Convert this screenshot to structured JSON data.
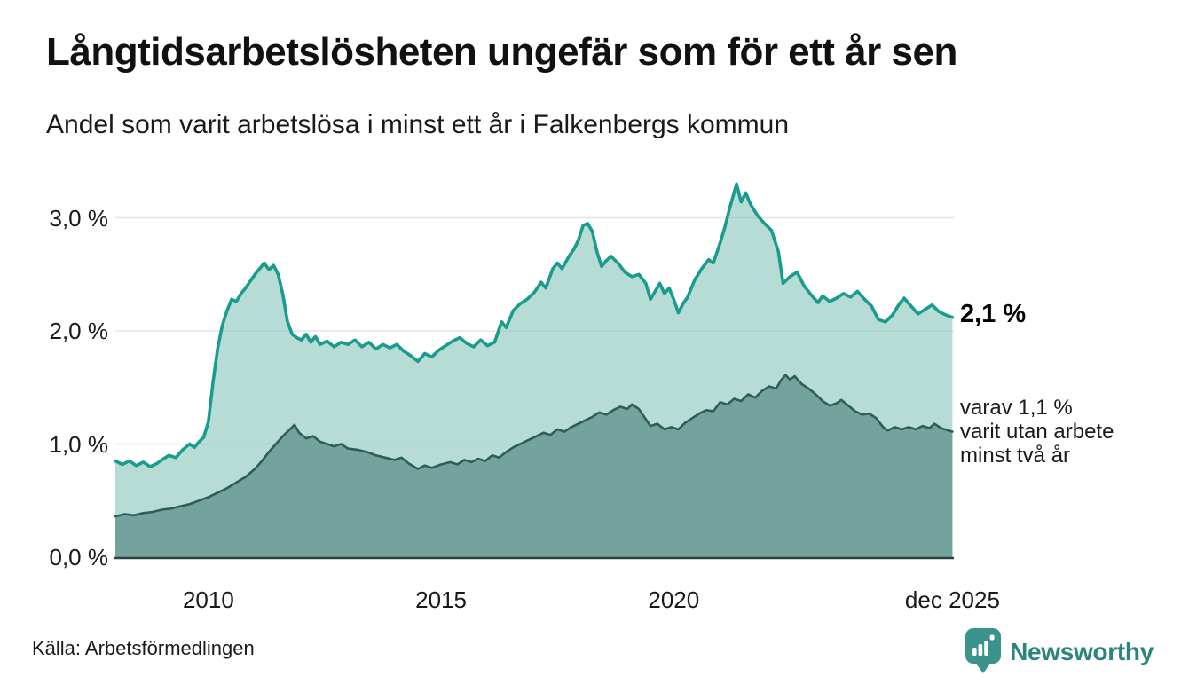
{
  "header": {
    "title": "Långtidsarbetslösheten ungefär som för ett år sen",
    "subtitle": "Andel som varit arbetslösa i minst ett år i Falkenbergs kommun"
  },
  "annotations": {
    "latest_value": "2,1 %",
    "secondary_line1": "varav 1,1 %",
    "secondary_line2": "varit utan arbete",
    "secondary_line3": "minst två år"
  },
  "footer": {
    "source": "Källa: Arbetsförmedlingen",
    "brand": "Newsworthy"
  },
  "colors": {
    "line_one_year": "#1a9c8d",
    "fill_one_year": "rgba(138,198,188,0.62)",
    "line_two_year": "#2d5f57",
    "fill_two_year": "#73a39c",
    "grid": "#e3e3e3",
    "axis": "#30403e",
    "logo_bubble": "#3b948b",
    "logo_text": "#2a857c",
    "text": "#1a1a1a"
  },
  "chart_data": {
    "type": "area",
    "title": "Långtidsarbetslösheten ungefär som för ett år sen",
    "subtitle": "Andel som varit arbetslösa i minst ett år i Falkenbergs kommun",
    "xlabel": "",
    "ylabel": "",
    "unit": "%",
    "x_range": [
      2008.0,
      2026.02
    ],
    "y_range": [
      0,
      3.3
    ],
    "grid": "horizontal",
    "legend": "annotated-inline",
    "x_ticks": [
      {
        "year": 2010,
        "label": "2010"
      },
      {
        "year": 2015,
        "label": "2015"
      },
      {
        "year": 2020,
        "label": "2020"
      },
      {
        "year": 2025.99,
        "label": "dec 2025"
      }
    ],
    "y_ticks": [
      {
        "value": 0,
        "label": "0,0 %"
      },
      {
        "value": 1,
        "label": "1,0 %"
      },
      {
        "value": 2,
        "label": "2,0 %"
      },
      {
        "value": 3,
        "label": "3,0 %"
      }
    ],
    "series": [
      {
        "name": "Andel som varit arbetslösa minst ett år",
        "end_value": 2.1,
        "end_label": "2,1 %",
        "points": [
          [
            2008.0,
            0.85
          ],
          [
            2008.15,
            0.82
          ],
          [
            2008.3,
            0.85
          ],
          [
            2008.45,
            0.81
          ],
          [
            2008.6,
            0.84
          ],
          [
            2008.75,
            0.8
          ],
          [
            2008.9,
            0.83
          ],
          [
            2009.0,
            0.86
          ],
          [
            2009.15,
            0.9
          ],
          [
            2009.3,
            0.88
          ],
          [
            2009.45,
            0.95
          ],
          [
            2009.6,
            1.0
          ],
          [
            2009.7,
            0.97
          ],
          [
            2009.8,
            1.02
          ],
          [
            2009.9,
            1.06
          ],
          [
            2010.0,
            1.2
          ],
          [
            2010.1,
            1.55
          ],
          [
            2010.2,
            1.85
          ],
          [
            2010.3,
            2.05
          ],
          [
            2010.4,
            2.18
          ],
          [
            2010.5,
            2.28
          ],
          [
            2010.6,
            2.26
          ],
          [
            2010.7,
            2.33
          ],
          [
            2010.8,
            2.38
          ],
          [
            2010.9,
            2.44
          ],
          [
            2011.0,
            2.5
          ],
          [
            2011.1,
            2.55
          ],
          [
            2011.2,
            2.6
          ],
          [
            2011.3,
            2.54
          ],
          [
            2011.4,
            2.58
          ],
          [
            2011.5,
            2.5
          ],
          [
            2011.6,
            2.32
          ],
          [
            2011.7,
            2.08
          ],
          [
            2011.8,
            1.97
          ],
          [
            2011.9,
            1.94
          ],
          [
            2012.0,
            1.92
          ],
          [
            2012.1,
            1.97
          ],
          [
            2012.2,
            1.9
          ],
          [
            2012.3,
            1.95
          ],
          [
            2012.4,
            1.88
          ],
          [
            2012.55,
            1.91
          ],
          [
            2012.7,
            1.86
          ],
          [
            2012.85,
            1.9
          ],
          [
            2013.0,
            1.88
          ],
          [
            2013.15,
            1.92
          ],
          [
            2013.3,
            1.86
          ],
          [
            2013.45,
            1.9
          ],
          [
            2013.6,
            1.84
          ],
          [
            2013.75,
            1.88
          ],
          [
            2013.9,
            1.85
          ],
          [
            2014.05,
            1.88
          ],
          [
            2014.2,
            1.82
          ],
          [
            2014.35,
            1.78
          ],
          [
            2014.5,
            1.73
          ],
          [
            2014.65,
            1.8
          ],
          [
            2014.8,
            1.77
          ],
          [
            2014.95,
            1.83
          ],
          [
            2015.1,
            1.87
          ],
          [
            2015.25,
            1.91
          ],
          [
            2015.4,
            1.94
          ],
          [
            2015.55,
            1.89
          ],
          [
            2015.7,
            1.86
          ],
          [
            2015.85,
            1.92
          ],
          [
            2016.0,
            1.87
          ],
          [
            2016.15,
            1.9
          ],
          [
            2016.3,
            2.08
          ],
          [
            2016.4,
            2.03
          ],
          [
            2016.55,
            2.18
          ],
          [
            2016.7,
            2.24
          ],
          [
            2016.85,
            2.28
          ],
          [
            2017.0,
            2.34
          ],
          [
            2017.15,
            2.43
          ],
          [
            2017.25,
            2.38
          ],
          [
            2017.4,
            2.55
          ],
          [
            2017.5,
            2.6
          ],
          [
            2017.6,
            2.55
          ],
          [
            2017.75,
            2.66
          ],
          [
            2017.85,
            2.72
          ],
          [
            2017.95,
            2.8
          ],
          [
            2018.05,
            2.93
          ],
          [
            2018.15,
            2.95
          ],
          [
            2018.25,
            2.88
          ],
          [
            2018.35,
            2.7
          ],
          [
            2018.45,
            2.57
          ],
          [
            2018.55,
            2.62
          ],
          [
            2018.65,
            2.66
          ],
          [
            2018.8,
            2.6
          ],
          [
            2018.95,
            2.52
          ],
          [
            2019.1,
            2.48
          ],
          [
            2019.25,
            2.5
          ],
          [
            2019.4,
            2.42
          ],
          [
            2019.5,
            2.28
          ],
          [
            2019.6,
            2.35
          ],
          [
            2019.7,
            2.42
          ],
          [
            2019.8,
            2.33
          ],
          [
            2019.9,
            2.38
          ],
          [
            2020.0,
            2.28
          ],
          [
            2020.1,
            2.16
          ],
          [
            2020.2,
            2.24
          ],
          [
            2020.3,
            2.3
          ],
          [
            2020.45,
            2.45
          ],
          [
            2020.6,
            2.55
          ],
          [
            2020.75,
            2.63
          ],
          [
            2020.85,
            2.6
          ],
          [
            2021.0,
            2.78
          ],
          [
            2021.1,
            2.92
          ],
          [
            2021.2,
            3.08
          ],
          [
            2021.35,
            3.3
          ],
          [
            2021.45,
            3.14
          ],
          [
            2021.55,
            3.22
          ],
          [
            2021.65,
            3.12
          ],
          [
            2021.8,
            3.02
          ],
          [
            2021.95,
            2.95
          ],
          [
            2022.1,
            2.89
          ],
          [
            2022.25,
            2.7
          ],
          [
            2022.35,
            2.42
          ],
          [
            2022.5,
            2.48
          ],
          [
            2022.65,
            2.52
          ],
          [
            2022.8,
            2.4
          ],
          [
            2022.95,
            2.32
          ],
          [
            2023.1,
            2.25
          ],
          [
            2023.2,
            2.31
          ],
          [
            2023.35,
            2.26
          ],
          [
            2023.5,
            2.29
          ],
          [
            2023.65,
            2.33
          ],
          [
            2023.8,
            2.3
          ],
          [
            2023.95,
            2.35
          ],
          [
            2024.1,
            2.28
          ],
          [
            2024.25,
            2.22
          ],
          [
            2024.4,
            2.1
          ],
          [
            2024.55,
            2.08
          ],
          [
            2024.7,
            2.14
          ],
          [
            2024.85,
            2.24
          ],
          [
            2024.95,
            2.29
          ],
          [
            2025.1,
            2.22
          ],
          [
            2025.25,
            2.15
          ],
          [
            2025.4,
            2.19
          ],
          [
            2025.55,
            2.23
          ],
          [
            2025.7,
            2.17
          ],
          [
            2025.85,
            2.14
          ],
          [
            2025.99,
            2.12
          ]
        ]
      },
      {
        "name": "Varav utan arbete minst två år",
        "end_value": 1.1,
        "end_label": "varav 1,1 % varit utan arbete minst två år",
        "points": [
          [
            2008.0,
            0.36
          ],
          [
            2008.2,
            0.38
          ],
          [
            2008.4,
            0.37
          ],
          [
            2008.6,
            0.39
          ],
          [
            2008.8,
            0.4
          ],
          [
            2009.0,
            0.42
          ],
          [
            2009.2,
            0.43
          ],
          [
            2009.4,
            0.45
          ],
          [
            2009.6,
            0.47
          ],
          [
            2009.8,
            0.5
          ],
          [
            2010.0,
            0.53
          ],
          [
            2010.2,
            0.57
          ],
          [
            2010.4,
            0.61
          ],
          [
            2010.6,
            0.66
          ],
          [
            2010.8,
            0.71
          ],
          [
            2011.0,
            0.78
          ],
          [
            2011.15,
            0.85
          ],
          [
            2011.3,
            0.93
          ],
          [
            2011.45,
            1.0
          ],
          [
            2011.6,
            1.07
          ],
          [
            2011.75,
            1.13
          ],
          [
            2011.85,
            1.17
          ],
          [
            2011.95,
            1.1
          ],
          [
            2012.1,
            1.05
          ],
          [
            2012.25,
            1.07
          ],
          [
            2012.4,
            1.02
          ],
          [
            2012.55,
            1.0
          ],
          [
            2012.7,
            0.98
          ],
          [
            2012.85,
            1.0
          ],
          [
            2013.0,
            0.96
          ],
          [
            2013.2,
            0.95
          ],
          [
            2013.4,
            0.93
          ],
          [
            2013.6,
            0.9
          ],
          [
            2013.8,
            0.88
          ],
          [
            2014.0,
            0.86
          ],
          [
            2014.15,
            0.88
          ],
          [
            2014.3,
            0.83
          ],
          [
            2014.5,
            0.78
          ],
          [
            2014.65,
            0.81
          ],
          [
            2014.8,
            0.79
          ],
          [
            2015.0,
            0.82
          ],
          [
            2015.2,
            0.84
          ],
          [
            2015.35,
            0.82
          ],
          [
            2015.5,
            0.86
          ],
          [
            2015.65,
            0.84
          ],
          [
            2015.8,
            0.87
          ],
          [
            2015.95,
            0.85
          ],
          [
            2016.1,
            0.9
          ],
          [
            2016.25,
            0.88
          ],
          [
            2016.4,
            0.93
          ],
          [
            2016.55,
            0.97
          ],
          [
            2016.7,
            1.0
          ],
          [
            2016.85,
            1.03
          ],
          [
            2017.0,
            1.06
          ],
          [
            2017.2,
            1.1
          ],
          [
            2017.35,
            1.08
          ],
          [
            2017.5,
            1.13
          ],
          [
            2017.65,
            1.11
          ],
          [
            2017.8,
            1.15
          ],
          [
            2017.95,
            1.18
          ],
          [
            2018.1,
            1.21
          ],
          [
            2018.25,
            1.24
          ],
          [
            2018.4,
            1.28
          ],
          [
            2018.55,
            1.26
          ],
          [
            2018.7,
            1.3
          ],
          [
            2018.85,
            1.33
          ],
          [
            2019.0,
            1.31
          ],
          [
            2019.1,
            1.35
          ],
          [
            2019.25,
            1.31
          ],
          [
            2019.4,
            1.22
          ],
          [
            2019.5,
            1.16
          ],
          [
            2019.65,
            1.18
          ],
          [
            2019.8,
            1.13
          ],
          [
            2019.95,
            1.15
          ],
          [
            2020.1,
            1.13
          ],
          [
            2020.25,
            1.19
          ],
          [
            2020.4,
            1.23
          ],
          [
            2020.55,
            1.27
          ],
          [
            2020.7,
            1.3
          ],
          [
            2020.85,
            1.29
          ],
          [
            2021.0,
            1.37
          ],
          [
            2021.15,
            1.35
          ],
          [
            2021.3,
            1.4
          ],
          [
            2021.45,
            1.38
          ],
          [
            2021.6,
            1.44
          ],
          [
            2021.75,
            1.41
          ],
          [
            2021.9,
            1.47
          ],
          [
            2022.05,
            1.51
          ],
          [
            2022.2,
            1.49
          ],
          [
            2022.3,
            1.56
          ],
          [
            2022.4,
            1.61
          ],
          [
            2022.5,
            1.57
          ],
          [
            2022.6,
            1.6
          ],
          [
            2022.75,
            1.53
          ],
          [
            2022.9,
            1.49
          ],
          [
            2023.05,
            1.44
          ],
          [
            2023.2,
            1.38
          ],
          [
            2023.35,
            1.34
          ],
          [
            2023.5,
            1.36
          ],
          [
            2023.6,
            1.39
          ],
          [
            2023.75,
            1.34
          ],
          [
            2023.9,
            1.29
          ],
          [
            2024.05,
            1.26
          ],
          [
            2024.2,
            1.27
          ],
          [
            2024.35,
            1.23
          ],
          [
            2024.5,
            1.15
          ],
          [
            2024.6,
            1.12
          ],
          [
            2024.75,
            1.15
          ],
          [
            2024.9,
            1.13
          ],
          [
            2025.05,
            1.15
          ],
          [
            2025.2,
            1.13
          ],
          [
            2025.35,
            1.16
          ],
          [
            2025.5,
            1.14
          ],
          [
            2025.6,
            1.18
          ],
          [
            2025.75,
            1.14
          ],
          [
            2025.9,
            1.12
          ],
          [
            2025.99,
            1.11
          ]
        ]
      }
    ]
  }
}
